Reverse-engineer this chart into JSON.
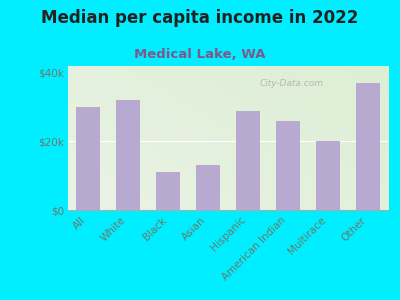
{
  "title": "Median per capita income in 2022",
  "subtitle": "Medical Lake, WA",
  "categories": [
    "All",
    "White",
    "Black",
    "Asian",
    "Hispanic",
    "American Indian",
    "Multirace",
    "Other"
  ],
  "values": [
    30000,
    32000,
    11000,
    13000,
    29000,
    26000,
    20000,
    37000
  ],
  "bar_color": "#b8a9d0",
  "background_outer": "#00eeff",
  "title_color": "#222222",
  "subtitle_color": "#7b5a8a",
  "tick_label_color": "#6a7a6a",
  "ylim": [
    0,
    42000
  ],
  "yticks": [
    0,
    20000,
    40000
  ],
  "ytick_labels": [
    "$0",
    "$20k",
    "$40k"
  ],
  "watermark": "City-Data.com",
  "title_fontsize": 12,
  "subtitle_fontsize": 9.5,
  "tick_fontsize": 7.5
}
